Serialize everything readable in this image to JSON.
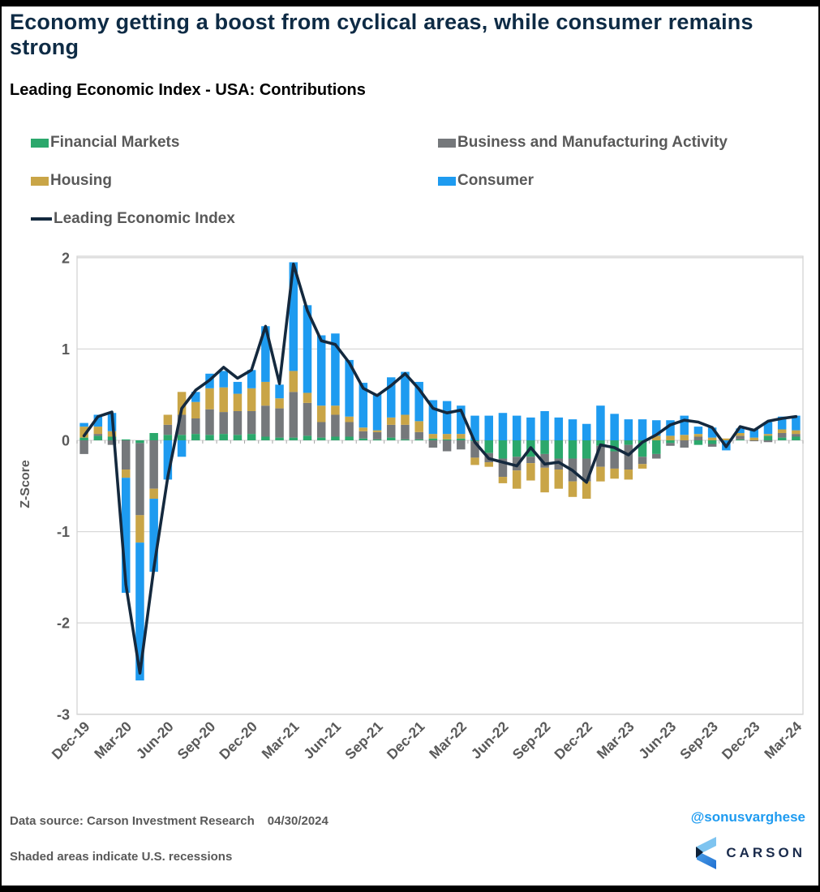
{
  "header": {
    "title": "Economy getting a boost from cyclical areas, while consumer remains strong"
  },
  "footer": {
    "data_source": "Data source: Carson Investment Research",
    "date": "04/30/2024",
    "note": "Shaded areas indicate U.S. recessions"
  },
  "branding": {
    "handle": "@sonusvarghese",
    "logo_text": "CARSON"
  },
  "chart_data": {
    "type": "bar",
    "subtype": "stacked-bar-with-line",
    "title": "Leading Economic Index - USA: Contributions",
    "xlabel": "",
    "ylabel": "Z-Score",
    "ylim": [
      -3,
      2
    ],
    "yticks": [
      2,
      1,
      0,
      -1,
      -2,
      -3
    ],
    "grid": "horizontal",
    "legend_position": "top-left-two-columns",
    "x_tick_every": 3,
    "x_tick_labels": [
      "Dec-19",
      "Mar-20",
      "Jun-20",
      "Sep-20",
      "Dec-20",
      "Mar-21",
      "Jun-21",
      "Sep-21",
      "Dec-21",
      "Mar-22",
      "Jun-22",
      "Sep-22",
      "Dec-22",
      "Mar-23",
      "Jun-23",
      "Sep-23",
      "Dec-23",
      "Mar-24"
    ],
    "categories": [
      "Dec-19",
      "Jan-20",
      "Feb-20",
      "Mar-20",
      "Apr-20",
      "May-20",
      "Jun-20",
      "Jul-20",
      "Aug-20",
      "Sep-20",
      "Oct-20",
      "Nov-20",
      "Dec-20",
      "Jan-21",
      "Feb-21",
      "Mar-21",
      "Apr-21",
      "May-21",
      "Jun-21",
      "Jul-21",
      "Aug-21",
      "Sep-21",
      "Oct-21",
      "Nov-21",
      "Dec-21",
      "Jan-22",
      "Feb-22",
      "Mar-22",
      "Apr-22",
      "May-22",
      "Jun-22",
      "Jul-22",
      "Aug-22",
      "Sep-22",
      "Oct-22",
      "Nov-22",
      "Dec-22",
      "Jan-23",
      "Feb-23",
      "Mar-23",
      "Apr-23",
      "May-23",
      "Jun-23",
      "Jul-23",
      "Aug-23",
      "Sep-23",
      "Oct-23",
      "Nov-23",
      "Dec-23",
      "Jan-24",
      "Feb-24",
      "Mar-24"
    ],
    "series": [
      {
        "name": "Financial Markets",
        "color": "#2BA86C",
        "values": [
          0.03,
          0.05,
          0.04,
          0.01,
          -0.03,
          0.08,
          0.06,
          0.06,
          0.07,
          0.06,
          0.07,
          0.06,
          0.07,
          0.04,
          0.03,
          0.03,
          0.05,
          0.03,
          0.04,
          0.04,
          0.02,
          0.01,
          0.03,
          0.01,
          0.01,
          0.02,
          0.01,
          0.02,
          -0.01,
          -0.14,
          -0.2,
          -0.18,
          -0.18,
          -0.15,
          -0.2,
          -0.2,
          -0.2,
          -0.06,
          -0.12,
          -0.05,
          -0.18,
          -0.15,
          -0.03,
          0.0,
          -0.05,
          -0.04,
          0.0,
          0.01,
          0.0,
          0.05,
          0.03,
          0.04
        ]
      },
      {
        "name": "Business and Manufacturing Activity",
        "color": "#75787B",
        "values": [
          -0.15,
          0.02,
          -0.05,
          -0.32,
          -0.79,
          -0.53,
          0.11,
          0.22,
          0.17,
          0.28,
          0.24,
          0.26,
          0.25,
          0.34,
          0.32,
          0.5,
          0.36,
          0.17,
          0.24,
          0.16,
          0.08,
          0.08,
          0.14,
          0.16,
          0.08,
          -0.08,
          -0.12,
          -0.1,
          -0.18,
          -0.1,
          -0.2,
          -0.15,
          -0.07,
          -0.15,
          -0.12,
          -0.25,
          -0.25,
          -0.23,
          -0.19,
          -0.27,
          -0.08,
          -0.05,
          -0.03,
          -0.08,
          0.04,
          -0.03,
          0.0,
          0.04,
          -0.01,
          -0.02,
          0.05,
          0.03
        ]
      },
      {
        "name": "Housing",
        "color": "#C9A547",
        "values": [
          0.12,
          0.08,
          0.06,
          -0.09,
          -0.3,
          -0.11,
          0.11,
          0.25,
          0.18,
          0.23,
          0.27,
          0.19,
          0.25,
          0.26,
          0.11,
          0.23,
          0.11,
          0.18,
          0.1,
          0.06,
          0.04,
          0.02,
          0.08,
          0.11,
          0.12,
          0.05,
          0.06,
          0.05,
          -0.08,
          -0.05,
          -0.07,
          -0.2,
          -0.19,
          -0.27,
          -0.21,
          -0.17,
          -0.19,
          -0.16,
          -0.11,
          -0.11,
          -0.05,
          0.05,
          0.05,
          0.06,
          0.03,
          0.03,
          0.02,
          0.03,
          0.03,
          0.02,
          0.04,
          0.04
        ]
      },
      {
        "name": "Consumer",
        "color": "#1E9BF0",
        "values": [
          0.04,
          0.13,
          0.2,
          -1.26,
          -1.51,
          -0.8,
          -0.43,
          -0.18,
          0.11,
          0.16,
          0.18,
          0.13,
          0.2,
          0.61,
          0.15,
          1.19,
          0.96,
          0.77,
          0.79,
          0.62,
          0.49,
          0.4,
          0.44,
          0.47,
          0.43,
          0.37,
          0.36,
          0.31,
          0.27,
          0.27,
          0.3,
          0.27,
          0.25,
          0.32,
          0.25,
          0.23,
          0.18,
          0.38,
          0.29,
          0.23,
          0.23,
          0.17,
          0.17,
          0.21,
          0.08,
          0.11,
          -0.11,
          0.05,
          0.09,
          0.13,
          0.14,
          0.16
        ]
      }
    ],
    "line": {
      "name": "Leading Economic Index",
      "color": "#14293E",
      "values": [
        0.05,
        0.26,
        0.31,
        -1.58,
        -2.55,
        -1.4,
        -0.4,
        0.35,
        0.55,
        0.66,
        0.8,
        0.68,
        0.77,
        1.25,
        0.62,
        1.93,
        1.42,
        1.09,
        1.05,
        0.85,
        0.57,
        0.49,
        0.6,
        0.73,
        0.56,
        0.35,
        0.3,
        0.33,
        -0.02,
        -0.2,
        -0.24,
        -0.28,
        -0.08,
        -0.26,
        -0.24,
        -0.33,
        -0.46,
        -0.05,
        -0.08,
        -0.16,
        -0.02,
        0.06,
        0.17,
        0.22,
        0.2,
        0.14,
        -0.07,
        0.15,
        0.11,
        0.21,
        0.24,
        0.26
      ]
    }
  }
}
